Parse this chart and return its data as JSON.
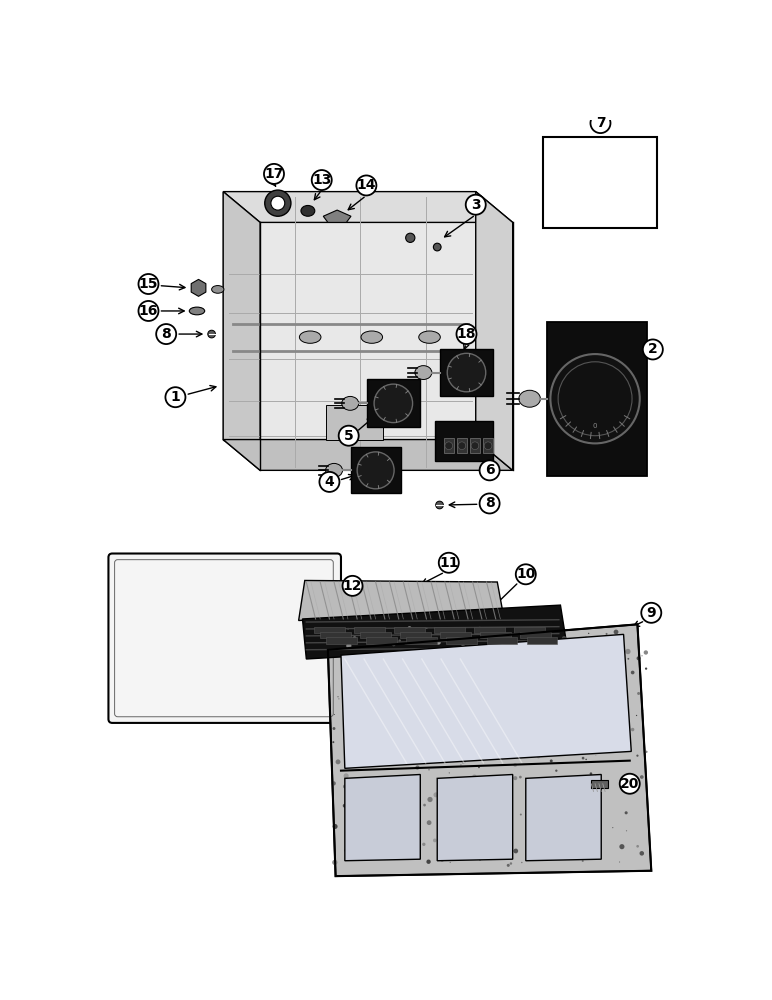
{
  "bg_color": "#ffffff",
  "line_color": "#000000",
  "dark_fill": "#111111",
  "dark2_fill": "#222222",
  "gray_fill": "#888888",
  "light_gray": "#cccccc",
  "medium_gray": "#666666",
  "panel_gray": "#d8d8d8",
  "figsize": [
    7.72,
    10.0
  ],
  "dpi": 100
}
